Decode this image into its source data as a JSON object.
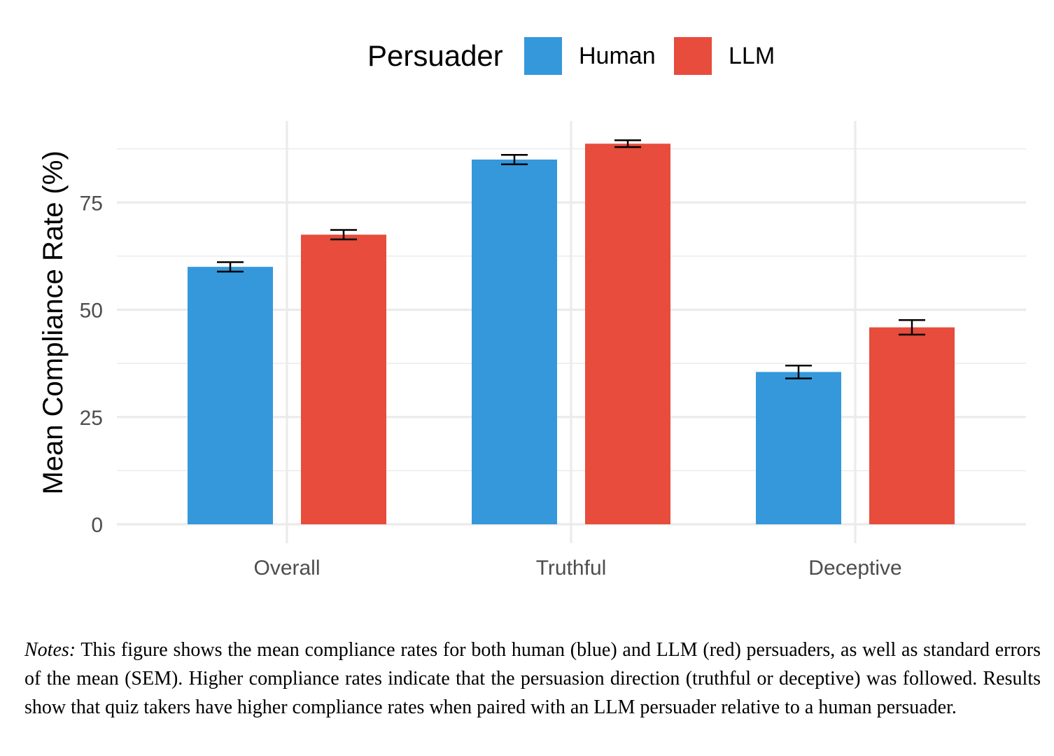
{
  "chart_data": {
    "type": "bar",
    "categories": [
      "Overall",
      "Truthful",
      "Deceptive"
    ],
    "series": [
      {
        "name": "Human",
        "color": "#3598DB",
        "values": [
          60.0,
          85.0,
          35.5
        ],
        "sem": [
          1.1,
          1.1,
          1.5
        ]
      },
      {
        "name": "LLM",
        "color": "#E74C3C",
        "values": [
          67.5,
          88.7,
          45.9
        ],
        "sem": [
          1.1,
          0.8,
          1.7
        ]
      }
    ],
    "title": "",
    "xlabel": "",
    "ylabel": "Mean Compliance Rate (%)",
    "ylim": [
      0,
      94
    ],
    "yticks": [
      0,
      25,
      50,
      75
    ],
    "grid": true,
    "legend": {
      "title": "Persuader",
      "position": "top"
    }
  },
  "notes": {
    "label": "Notes:",
    "text": " This figure shows the mean compliance rates for both human (blue) and LLM (red) persuaders, as well as standard errors of the mean (SEM). Higher compliance rates indicate that the persuasion direction (truthful or deceptive) was followed. Results show that quiz takers have higher compliance rates when paired with an LLM persuader relative to a human persuader."
  }
}
